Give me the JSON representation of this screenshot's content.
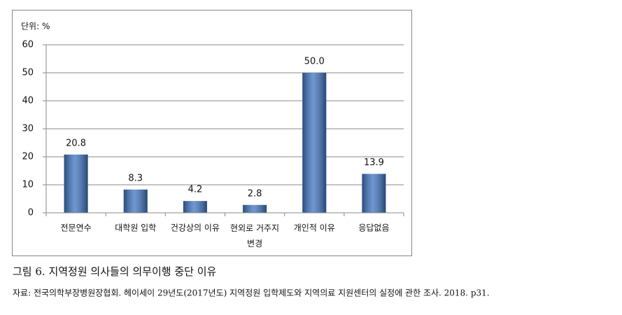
{
  "chart_data": {
    "type": "bar",
    "y_unit_label": "단위: %",
    "categories": [
      "전문연수",
      "대학원 입학",
      "건강상의 이유",
      "현외로 거주지 변경",
      "개인적 이유",
      "응답없음"
    ],
    "values": [
      20.8,
      8.3,
      4.2,
      2.8,
      50.0,
      13.9
    ],
    "value_labels": [
      "20.8",
      "8.3",
      "4.2",
      "2.8",
      "50.0",
      "13.9"
    ],
    "color": "#3f74c0",
    "ylim": [
      0,
      60
    ],
    "yticks": [
      0,
      10,
      20,
      30,
      40,
      50,
      60
    ],
    "grid": true
  },
  "caption": {
    "figure": "그림 6. 지역정원 의사들의 의무이행 중단 이유",
    "source": "자료: 전국의학부장병원장협회. 헤이세이 29년도(2017년도) 지역정원 입학제도와 지역의료 지원센터의 실정에 관한 조사. 2018. p31."
  }
}
